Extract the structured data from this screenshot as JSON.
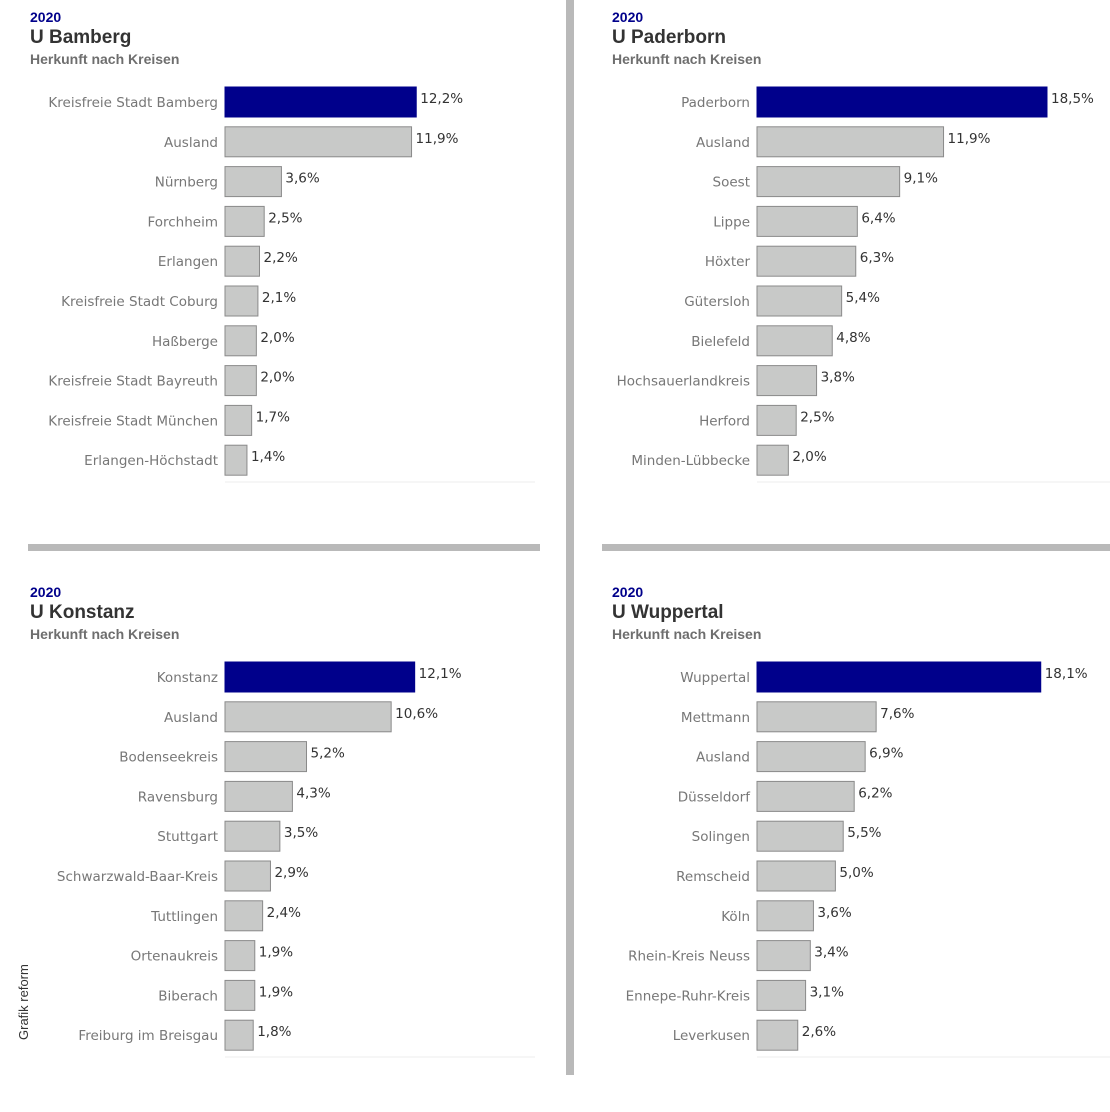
{
  "colors": {
    "highlight": "#00008b",
    "bar": "#c8c9c8",
    "bar_stroke": "#8a8a8a",
    "separator": "#b9b9b9"
  },
  "side_credit": "Grafik reform",
  "panels": [
    {
      "year": "2020",
      "title": "U Bamberg",
      "subtitle": "Herkunft nach Kreisen"
    },
    {
      "year": "2020",
      "title": "U Paderborn",
      "subtitle": "Herkunft nach Kreisen"
    },
    {
      "year": "2020",
      "title": "U Konstanz",
      "subtitle": "Herkunft nach Kreisen"
    },
    {
      "year": "2020",
      "title": "U Wuppertal",
      "subtitle": "Herkunft nach Kreisen"
    }
  ],
  "chart_data": [
    {
      "type": "bar",
      "orientation": "horizontal",
      "title": "U Bamberg",
      "categories": [
        "Kreisfreie Stadt Bamberg",
        "Ausland",
        "Nürnberg",
        "Forchheim",
        "Erlangen",
        "Kreisfreie Stadt Coburg",
        "Haßberge",
        "Kreisfreie Stadt Bayreuth",
        "Kreisfreie Stadt München",
        "Erlangen-Höchstadt"
      ],
      "values": [
        12.2,
        11.9,
        3.6,
        2.5,
        2.2,
        2.1,
        2.0,
        2.0,
        1.7,
        1.4
      ],
      "value_labels": [
        "12,2%",
        "11,9%",
        "3,6%",
        "2,5%",
        "2,2%",
        "2,1%",
        "2,0%",
        "2,0%",
        "1,7%",
        "1,4%"
      ],
      "highlight_index": 0,
      "xlim": [
        0,
        18.5
      ]
    },
    {
      "type": "bar",
      "orientation": "horizontal",
      "title": "U Paderborn",
      "categories": [
        "Paderborn",
        "Ausland",
        "Soest",
        "Lippe",
        "Höxter",
        "Gütersloh",
        "Bielefeld",
        "Hochsauerlandkreis",
        "Herford",
        "Minden-Lübbecke"
      ],
      "values": [
        18.5,
        11.9,
        9.1,
        6.4,
        6.3,
        5.4,
        4.8,
        3.8,
        2.5,
        2.0
      ],
      "value_labels": [
        "18,5%",
        "11,9%",
        "9,1%",
        "6,4%",
        "6,3%",
        "5,4%",
        "4,8%",
        "3,8%",
        "2,5%",
        "2,0%"
      ],
      "highlight_index": 0,
      "xlim": [
        0,
        18.5
      ]
    },
    {
      "type": "bar",
      "orientation": "horizontal",
      "title": "U Konstanz",
      "categories": [
        "Konstanz",
        "Ausland",
        "Bodenseekreis",
        "Ravensburg",
        "Stuttgart",
        "Schwarzwald-Baar-Kreis",
        "Tuttlingen",
        "Ortenaukreis",
        "Biberach",
        "Freiburg im Breisgau"
      ],
      "values": [
        12.1,
        10.6,
        5.2,
        4.3,
        3.5,
        2.9,
        2.4,
        1.9,
        1.9,
        1.8
      ],
      "value_labels": [
        "12,1%",
        "10,6%",
        "5,2%",
        "4,3%",
        "3,5%",
        "2,9%",
        "2,4%",
        "1,9%",
        "1,9%",
        "1,8%"
      ],
      "highlight_index": 0,
      "xlim": [
        0,
        18.5
      ]
    },
    {
      "type": "bar",
      "orientation": "horizontal",
      "title": "U Wuppertal",
      "categories": [
        "Wuppertal",
        "Mettmann",
        "Ausland",
        "Düsseldorf",
        "Solingen",
        "Remscheid",
        "Köln",
        "Rhein-Kreis Neuss",
        "Ennepe-Ruhr-Kreis",
        "Leverkusen"
      ],
      "values": [
        18.1,
        7.6,
        6.9,
        6.2,
        5.5,
        5.0,
        3.6,
        3.4,
        3.1,
        2.6
      ],
      "value_labels": [
        "18,1%",
        "7,6%",
        "6,9%",
        "6,2%",
        "5,5%",
        "5,0%",
        "3,6%",
        "3,4%",
        "3,1%",
        "2,6%"
      ],
      "highlight_index": 0,
      "xlim": [
        0,
        18.5
      ]
    }
  ]
}
